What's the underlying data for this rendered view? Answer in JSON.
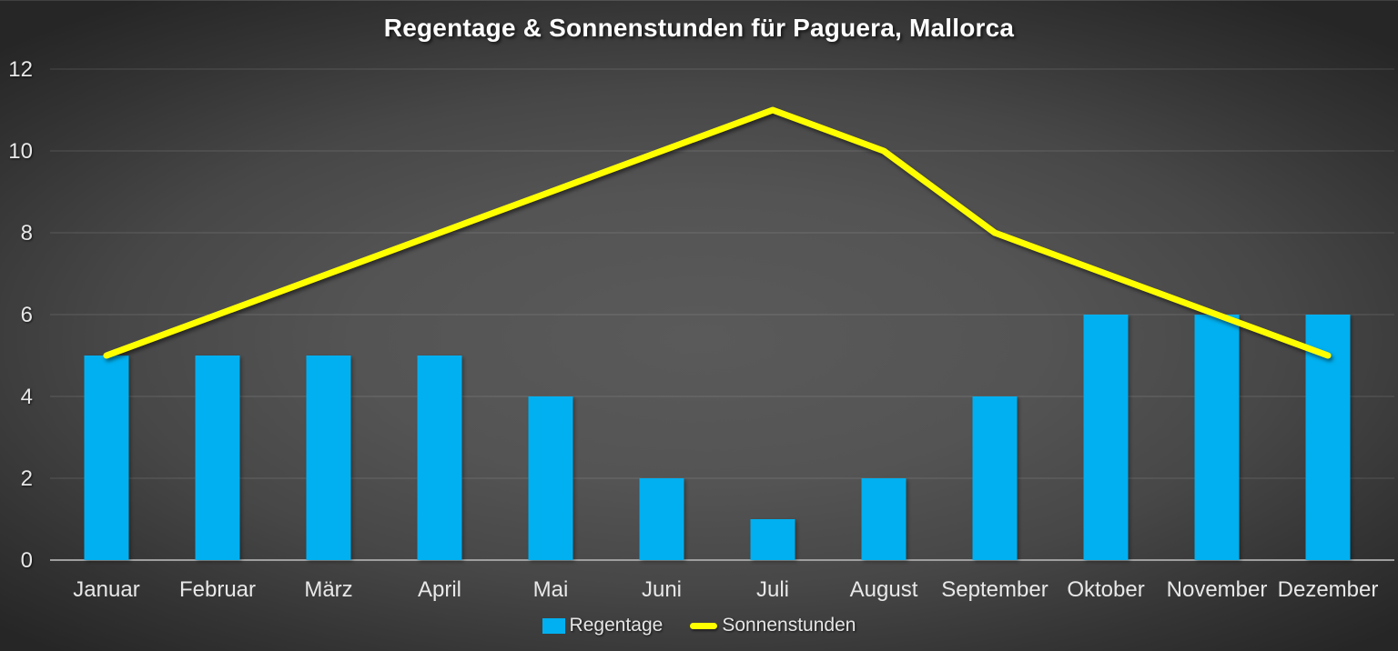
{
  "title": "Regentage & Sonnenstunden für Paguera, Mallorca",
  "legend": [
    {
      "label": "Regentage",
      "marker": "square",
      "color": "#00b0f0"
    },
    {
      "label": "Sonnenstunden",
      "marker": "line",
      "color": "#ffff00"
    }
  ],
  "colors": {
    "bar": "#00b0f0",
    "line": "#ffff00",
    "grid": "rgba(255,255,255,0.14)",
    "axis": "#9f9f9f",
    "tick_text": "#e8e8e8",
    "title_text": "#ffffff",
    "background_center": "#5a5a5a",
    "background_edge": "#262626"
  },
  "chart_data": {
    "type": "combo",
    "categories": [
      "Januar",
      "Februar",
      "März",
      "April",
      "Mai",
      "Juni",
      "Juli",
      "August",
      "September",
      "Oktober",
      "November",
      "Dezember"
    ],
    "series": [
      {
        "name": "Regentage",
        "type": "bar",
        "color": "#00b0f0",
        "values": [
          5,
          5,
          5,
          5,
          4,
          2,
          1,
          2,
          4,
          6,
          6,
          6
        ]
      },
      {
        "name": "Sonnenstunden",
        "type": "line",
        "color": "#ffff00",
        "values": [
          5,
          6,
          7,
          8,
          9,
          10,
          11,
          10,
          8,
          7,
          6,
          5
        ]
      }
    ],
    "title": "Regentage & Sonnenstunden für Paguera, Mallorca",
    "xlabel": "",
    "ylabel": "",
    "ylim": [
      0,
      12
    ],
    "yticks": [
      0,
      2,
      4,
      6,
      8,
      10,
      12
    ],
    "grid": true,
    "legend_position": "bottom"
  }
}
